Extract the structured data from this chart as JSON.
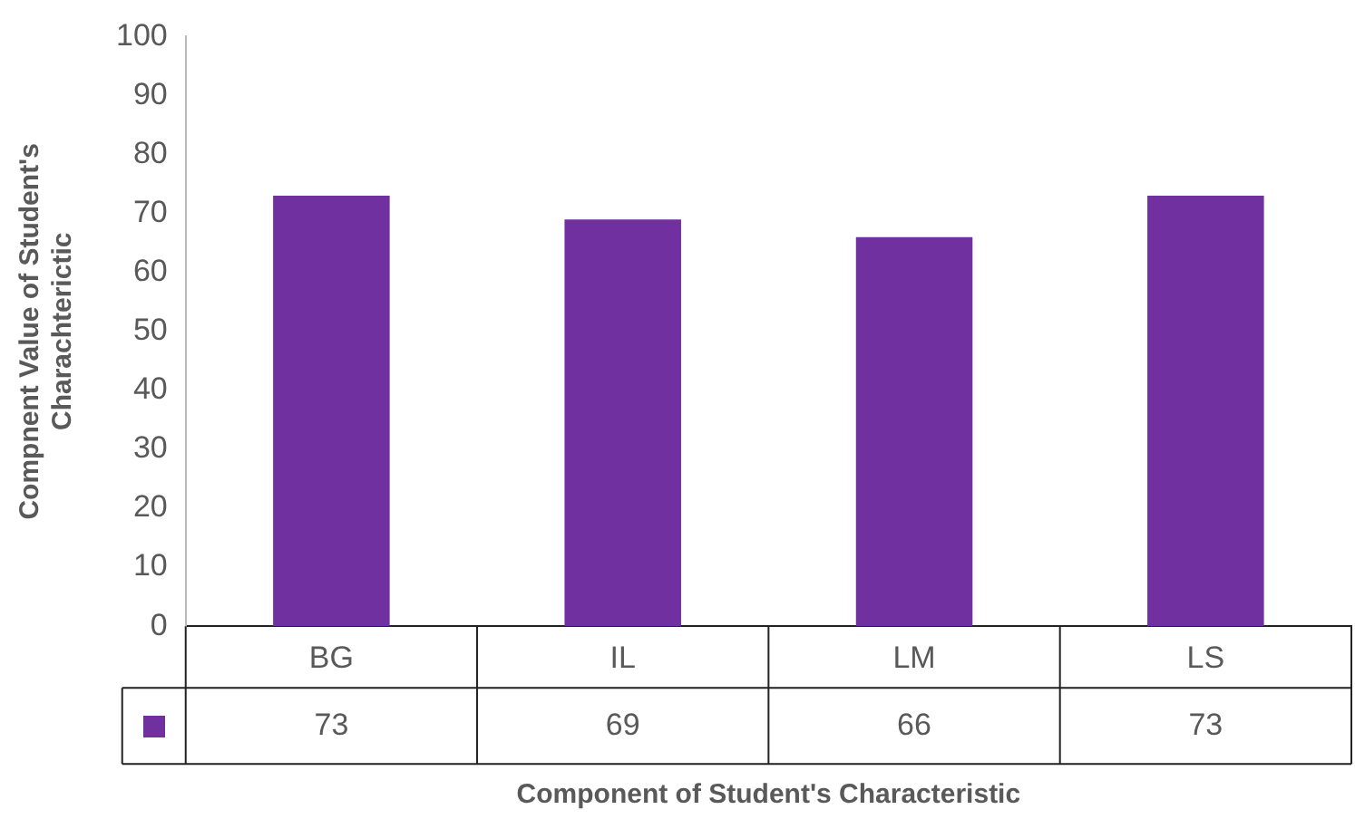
{
  "chart_data": {
    "type": "bar",
    "xlabel": "Component of Student's Characteristic",
    "ylabel": "Compnent Value of Student's Charachterictic",
    "categories": [
      "BG",
      "IL",
      "LM",
      "LS"
    ],
    "values": [
      73,
      69,
      66,
      73
    ],
    "color": "#7030a0",
    "ylim": [
      0,
      100
    ],
    "yticks": [
      0,
      10,
      20,
      30,
      40,
      50,
      60,
      70,
      80,
      90,
      100
    ],
    "grid": false,
    "legend": false,
    "data_labels": true
  }
}
